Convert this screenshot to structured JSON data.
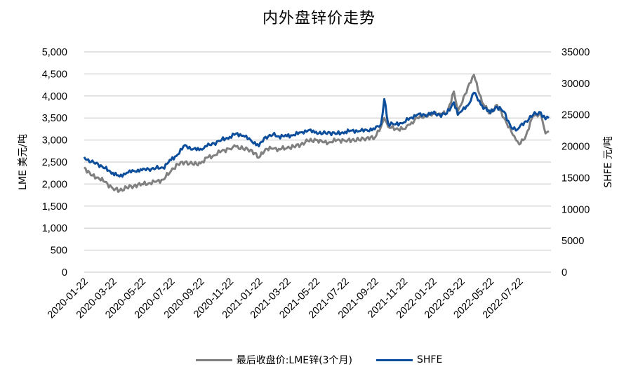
{
  "chart_data": {
    "type": "line",
    "title": "内外盘锌价走势",
    "xlabel": "",
    "ylabel_left": "LME 美元/吨",
    "ylabel_right": "SHFE 元/吨",
    "ylim_left": [
      0,
      5000
    ],
    "ylim_right": [
      0,
      35000
    ],
    "yticks_left": [
      "5,000",
      "4,500",
      "4,000",
      "3,500",
      "3,000",
      "2,500",
      "2,000",
      "1,500",
      "1,000",
      "500",
      "0"
    ],
    "yticks_right": [
      "35000",
      "30000",
      "25000",
      "20000",
      "15000",
      "10000",
      "5000",
      "0"
    ],
    "xticks": [
      "2020-01-22",
      "2020-03-22",
      "2020-05-22",
      "2020-07-22",
      "2020-09-22",
      "2020-11-22",
      "2021-01-22",
      "2021-03-22",
      "2021-05-22",
      "2021-07-22",
      "2021-09-22",
      "2021-11-22",
      "2022-01-22",
      "2022-03-22",
      "2022-05-22",
      "2022-07-22"
    ],
    "grid": "horizontal",
    "legend_position": "bottom",
    "x": [
      "2020-01-22",
      "2020-02-05",
      "2020-02-20",
      "2020-03-05",
      "2020-03-22",
      "2020-04-05",
      "2020-04-20",
      "2020-05-05",
      "2020-05-22",
      "2020-06-05",
      "2020-06-20",
      "2020-07-05",
      "2020-07-22",
      "2020-08-05",
      "2020-08-20",
      "2020-09-05",
      "2020-09-22",
      "2020-10-05",
      "2020-10-20",
      "2020-11-05",
      "2020-11-22",
      "2020-12-05",
      "2020-12-20",
      "2021-01-05",
      "2021-01-22",
      "2021-02-05",
      "2021-02-20",
      "2021-03-05",
      "2021-03-22",
      "2021-04-05",
      "2021-04-20",
      "2021-05-05",
      "2021-05-22",
      "2021-06-05",
      "2021-06-20",
      "2021-07-05",
      "2021-07-22",
      "2021-08-05",
      "2021-08-20",
      "2021-09-05",
      "2021-09-22",
      "2021-10-05",
      "2021-10-12",
      "2021-10-20",
      "2021-11-05",
      "2021-11-22",
      "2021-12-05",
      "2021-12-20",
      "2022-01-05",
      "2022-01-22",
      "2022-02-05",
      "2022-02-20",
      "2022-03-07",
      "2022-03-15",
      "2022-03-22",
      "2022-04-05",
      "2022-04-18",
      "2022-05-05",
      "2022-05-22",
      "2022-06-05",
      "2022-06-20",
      "2022-07-05",
      "2022-07-15",
      "2022-07-22",
      "2022-08-05",
      "2022-08-20",
      "2022-09-05",
      "2022-09-15",
      "2022-09-22"
    ],
    "series": [
      {
        "name": "最后收盘价:LME锌(3个月)",
        "axis": "left",
        "color": "#808080",
        "values": [
          2380,
          2200,
          2150,
          2050,
          1900,
          1850,
          1920,
          1960,
          2000,
          2020,
          2050,
          2100,
          2300,
          2450,
          2500,
          2450,
          2470,
          2600,
          2650,
          2750,
          2800,
          2850,
          2800,
          2780,
          2600,
          2800,
          2800,
          2800,
          2820,
          2850,
          2900,
          2980,
          3000,
          2950,
          2950,
          3000,
          2980,
          3000,
          3000,
          3050,
          3050,
          3300,
          3500,
          3300,
          3250,
          3250,
          3350,
          3500,
          3550,
          3600,
          3600,
          3600,
          4100,
          3650,
          3800,
          4200,
          4480,
          3850,
          3600,
          3800,
          3500,
          3200,
          3000,
          2900,
          3100,
          3550,
          3600,
          3150,
          3200
        ]
      },
      {
        "name": "SHFE",
        "axis": "right",
        "color": "#0D4E9C",
        "values": [
          18300,
          17500,
          17200,
          16500,
          15800,
          15200,
          15800,
          16100,
          16200,
          16400,
          16500,
          16600,
          17800,
          18700,
          20200,
          19500,
          19600,
          20000,
          20500,
          21000,
          21500,
          22000,
          21700,
          21000,
          20000,
          21500,
          21800,
          21600,
          21600,
          21800,
          22200,
          22500,
          22300,
          22000,
          22200,
          22000,
          22300,
          22500,
          22400,
          22600,
          22700,
          23500,
          27500,
          23600,
          23500,
          23800,
          24500,
          25000,
          25000,
          25200,
          25000,
          25200,
          27000,
          25000,
          25500,
          26500,
          28500,
          26500,
          25300,
          26300,
          25500,
          23000,
          22500,
          23000,
          24000,
          25000,
          25400,
          24300,
          24500
        ]
      }
    ]
  },
  "legend": {
    "items": [
      {
        "label": "最后收盘价:LME锌(3个月)",
        "color": "#808080"
      },
      {
        "label": "SHFE",
        "color": "#0D4E9C"
      }
    ]
  }
}
